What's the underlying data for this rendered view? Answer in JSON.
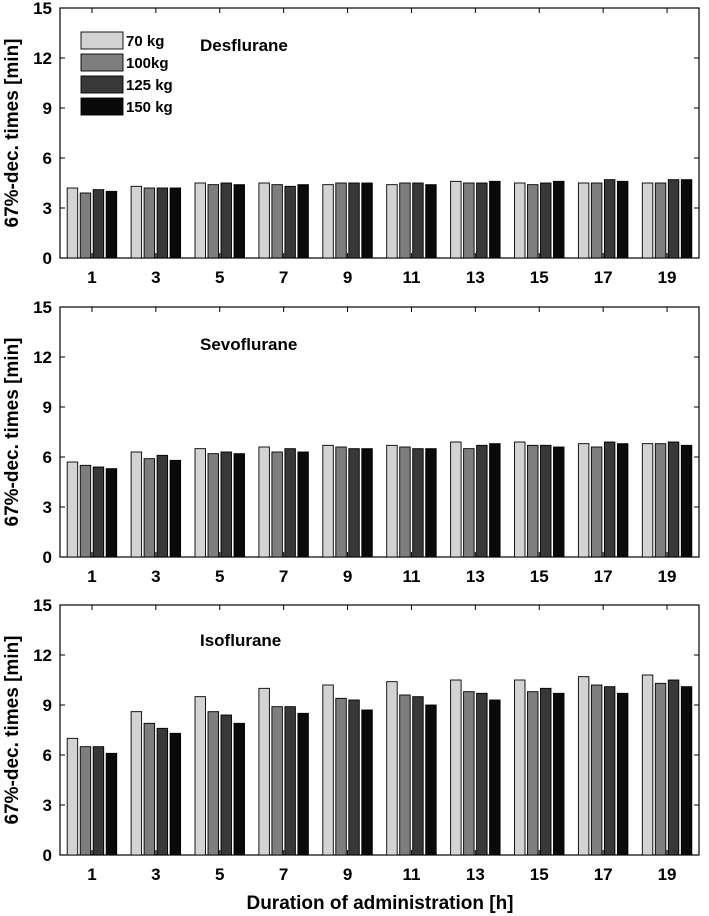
{
  "chart_data": [
    {
      "type": "bar",
      "title": "Desflurane",
      "ylabel": "67%-dec. times [min]",
      "xlabel": "",
      "ylim": [
        0,
        15
      ],
      "yticks": [
        "0",
        "3",
        "6",
        "9",
        "12",
        "15"
      ],
      "grid": false,
      "legend": "top-left",
      "categories": [
        "1",
        "3",
        "5",
        "7",
        "9",
        "11",
        "13",
        "15",
        "17",
        "19"
      ],
      "series": [
        {
          "name": "70 kg",
          "color": "#d3d3d3",
          "values": [
            4.2,
            4.3,
            4.5,
            4.5,
            4.4,
            4.4,
            4.6,
            4.5,
            4.5,
            4.5
          ]
        },
        {
          "name": "100kg",
          "color": "#7e7e7e",
          "values": [
            3.9,
            4.2,
            4.4,
            4.4,
            4.5,
            4.5,
            4.5,
            4.4,
            4.5,
            4.5
          ]
        },
        {
          "name": "125 kg",
          "color": "#383838",
          "values": [
            4.1,
            4.2,
            4.5,
            4.3,
            4.5,
            4.5,
            4.5,
            4.5,
            4.7,
            4.7
          ]
        },
        {
          "name": "150 kg",
          "color": "#0a0a0a",
          "values": [
            4.0,
            4.2,
            4.4,
            4.4,
            4.5,
            4.4,
            4.6,
            4.6,
            4.6,
            4.7
          ]
        }
      ]
    },
    {
      "type": "bar",
      "title": "Sevoflurane",
      "ylabel": "67%-dec. times [min]",
      "xlabel": "",
      "ylim": [
        0,
        15
      ],
      "yticks": [
        "0",
        "3",
        "6",
        "9",
        "12",
        "15"
      ],
      "grid": false,
      "categories": [
        "1",
        "3",
        "5",
        "7",
        "9",
        "11",
        "13",
        "15",
        "17",
        "19"
      ],
      "series": [
        {
          "name": "70 kg",
          "color": "#d3d3d3",
          "values": [
            5.7,
            6.3,
            6.5,
            6.6,
            6.7,
            6.7,
            6.9,
            6.9,
            6.8,
            6.8
          ]
        },
        {
          "name": "100kg",
          "color": "#7e7e7e",
          "values": [
            5.5,
            5.9,
            6.2,
            6.3,
            6.6,
            6.6,
            6.5,
            6.7,
            6.6,
            6.8
          ]
        },
        {
          "name": "125 kg",
          "color": "#383838",
          "values": [
            5.4,
            6.1,
            6.3,
            6.5,
            6.5,
            6.5,
            6.7,
            6.7,
            6.9,
            6.9
          ]
        },
        {
          "name": "150 kg",
          "color": "#0a0a0a",
          "values": [
            5.3,
            5.8,
            6.2,
            6.3,
            6.5,
            6.5,
            6.8,
            6.6,
            6.8,
            6.7
          ]
        }
      ]
    },
    {
      "type": "bar",
      "title": "Isoflurane",
      "ylabel": "67%-dec. times [min]",
      "xlabel": "Duration of administration [h]",
      "ylim": [
        0,
        15
      ],
      "yticks": [
        "0",
        "3",
        "6",
        "9",
        "12",
        "15"
      ],
      "grid": false,
      "categories": [
        "1",
        "3",
        "5",
        "7",
        "9",
        "11",
        "13",
        "15",
        "17",
        "19"
      ],
      "series": [
        {
          "name": "70 kg",
          "color": "#d3d3d3",
          "values": [
            7.0,
            8.6,
            9.5,
            10.0,
            10.2,
            10.4,
            10.5,
            10.5,
            10.7,
            10.8
          ]
        },
        {
          "name": "100kg",
          "color": "#7e7e7e",
          "values": [
            6.5,
            7.9,
            8.6,
            8.9,
            9.4,
            9.6,
            9.8,
            9.8,
            10.2,
            10.3
          ]
        },
        {
          "name": "125 kg",
          "color": "#383838",
          "values": [
            6.5,
            7.6,
            8.4,
            8.9,
            9.3,
            9.5,
            9.7,
            10.0,
            10.1,
            10.5
          ]
        },
        {
          "name": "150 kg",
          "color": "#0a0a0a",
          "values": [
            6.1,
            7.3,
            7.9,
            8.5,
            8.7,
            9.0,
            9.3,
            9.7,
            9.7,
            10.1
          ]
        }
      ]
    }
  ]
}
